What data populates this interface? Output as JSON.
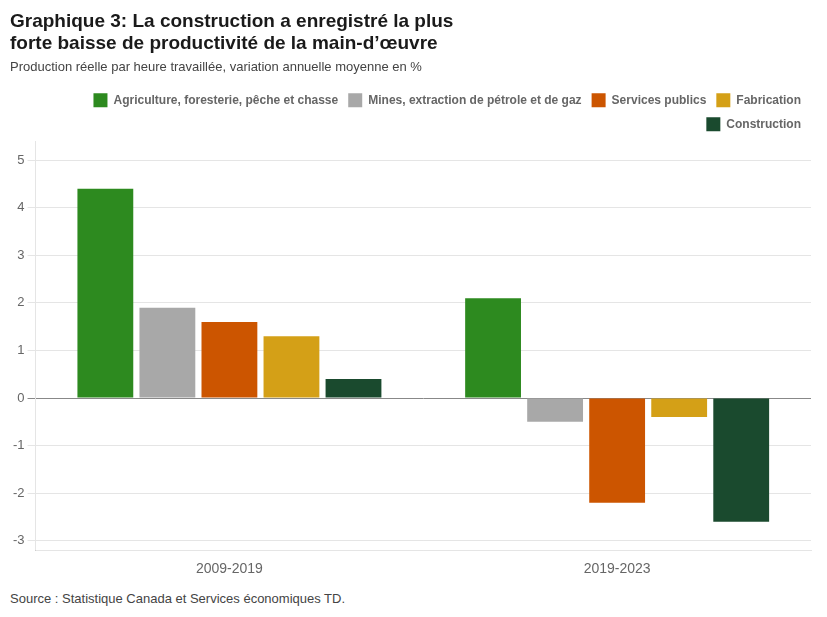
{
  "chart_data": {
    "type": "bar",
    "title": [
      "Graphique 3: La construction a enregistré la plus",
      "forte baisse de productivité de la main-d’œuvre"
    ],
    "subtitle": "Production réelle par heure travaillée, variation annuelle moyenne en %",
    "source": "Source : Statistique Canada et Services économiques TD.",
    "categories": [
      "2009-2019",
      "2019-2023"
    ],
    "series": [
      {
        "name": "Agriculture, foresterie, pêche et chasse",
        "color": "#2d8a1f",
        "values": [
          4.4,
          2.1
        ]
      },
      {
        "name": "Mines, extraction de pétrole et de gaz",
        "color": "#a8a8a8",
        "values": [
          1.9,
          -0.5
        ]
      },
      {
        "name": "Services publics",
        "color": "#cc5500",
        "values": [
          1.6,
          -2.2
        ]
      },
      {
        "name": "Fabrication",
        "color": "#d4a017",
        "values": [
          1.3,
          -0.4
        ]
      },
      {
        "name": "Construction",
        "color": "#1a4a2e",
        "values": [
          0.4,
          -2.6
        ]
      }
    ],
    "ylim": [
      -3.2,
      5.4
    ],
    "yticks": [
      -3,
      -2,
      -1,
      0,
      1,
      2,
      3,
      4,
      5
    ],
    "grid": true,
    "legend": "upper right"
  }
}
